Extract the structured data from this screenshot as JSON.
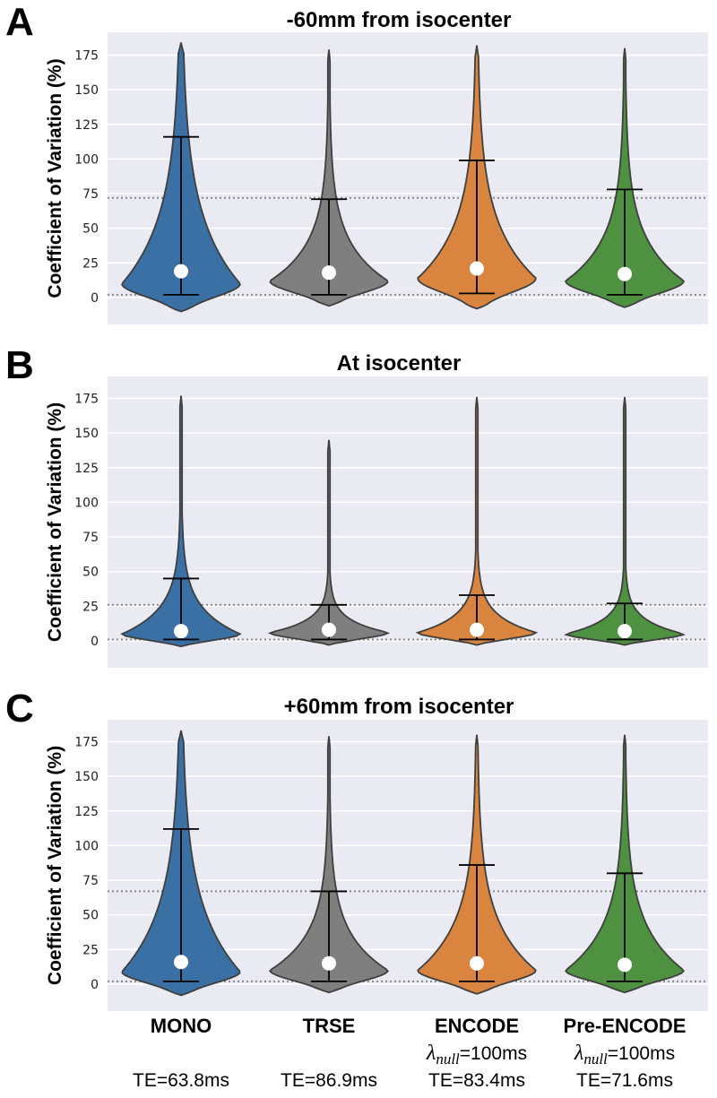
{
  "colors": {
    "plot_bg": "#EAEAF2",
    "grid": "#FFFFFF",
    "edge": "#3F3F3F",
    "threshold_line": "#888888",
    "series": [
      "#3A70A4",
      "#7F7F7F",
      "#D9853F",
      "#4E9141"
    ]
  },
  "chart_data": [
    {
      "type": "violin",
      "panel_label": "A",
      "title": "-60mm from isocenter",
      "ylabel": "Coefficient of Variation (%)",
      "ylim": [
        -20,
        190
      ],
      "yticks": [
        0,
        25,
        50,
        75,
        100,
        125,
        150,
        175
      ],
      "hlines": [
        2,
        72
      ],
      "violins": [
        {
          "category": "MONO",
          "min": 2,
          "median": 19,
          "max": 116,
          "kde_top": 184,
          "kde_bottom": -10,
          "mode": 10,
          "width": 0.8
        },
        {
          "category": "TRSE",
          "min": 2,
          "median": 18,
          "max": 71,
          "kde_top": 179,
          "kde_bottom": -6,
          "mode": 12,
          "width": 0.8
        },
        {
          "category": "ENCODE",
          "min": 3,
          "median": 21,
          "max": 99,
          "kde_top": 182,
          "kde_bottom": -8,
          "mode": 14,
          "width": 0.8
        },
        {
          "category": "Pre-ENCODE",
          "min": 2,
          "median": 17,
          "max": 78,
          "kde_top": 180,
          "kde_bottom": -7,
          "mode": 12,
          "width": 0.8
        }
      ]
    },
    {
      "type": "violin",
      "panel_label": "B",
      "title": "At isocenter",
      "ylabel": "Coefficient of Variation (%)",
      "ylim": [
        -20,
        190
      ],
      "yticks": [
        0,
        25,
        50,
        75,
        100,
        125,
        150,
        175
      ],
      "hlines": [
        1,
        26
      ],
      "violins": [
        {
          "category": "MONO",
          "min": 1,
          "median": 7,
          "max": 45,
          "kde_top": 177,
          "kde_bottom": -4,
          "mode": 5,
          "width": 0.8
        },
        {
          "category": "TRSE",
          "min": 1,
          "median": 8,
          "max": 26,
          "kde_top": 145,
          "kde_bottom": -3,
          "mode": 6,
          "width": 0.8
        },
        {
          "category": "ENCODE",
          "min": 1,
          "median": 8,
          "max": 33,
          "kde_top": 176,
          "kde_bottom": -3,
          "mode": 6,
          "width": 0.8
        },
        {
          "category": "Pre-ENCODE",
          "min": 1,
          "median": 7,
          "max": 27,
          "kde_top": 176,
          "kde_bottom": -3,
          "mode": 5,
          "width": 0.8
        }
      ]
    },
    {
      "type": "violin",
      "panel_label": "C",
      "title": "+60mm from isocenter",
      "ylabel": "Coefficient of Variation (%)",
      "ylim": [
        -20,
        190
      ],
      "yticks": [
        0,
        25,
        50,
        75,
        100,
        125,
        150,
        175
      ],
      "hlines": [
        2,
        67
      ],
      "violins": [
        {
          "category": "MONO",
          "min": 2,
          "median": 16,
          "max": 112,
          "kde_top": 183,
          "kde_bottom": -8,
          "mode": 9,
          "width": 0.8
        },
        {
          "category": "TRSE",
          "min": 2,
          "median": 15,
          "max": 67,
          "kde_top": 179,
          "kde_bottom": -6,
          "mode": 10,
          "width": 0.8
        },
        {
          "category": "ENCODE",
          "min": 2,
          "median": 15,
          "max": 86,
          "kde_top": 180,
          "kde_bottom": -7,
          "mode": 10,
          "width": 0.8
        },
        {
          "category": "Pre-ENCODE",
          "min": 2,
          "median": 14,
          "max": 80,
          "kde_top": 180,
          "kde_bottom": -6,
          "mode": 10,
          "width": 0.8
        }
      ]
    }
  ],
  "categories": [
    {
      "label": "MONO",
      "lambda": "",
      "te": "TE=63.8ms"
    },
    {
      "label": "TRSE",
      "lambda": "",
      "te": "TE=86.9ms"
    },
    {
      "label": "ENCODE",
      "lambda_symbol": "λ",
      "lambda_sub": "null",
      "lambda_value": "=100ms",
      "te": "TE=83.4ms"
    },
    {
      "label": "Pre-ENCODE",
      "lambda_symbol": "λ",
      "lambda_sub": "null",
      "lambda_value": "=100ms",
      "te": "TE=71.6ms"
    }
  ]
}
